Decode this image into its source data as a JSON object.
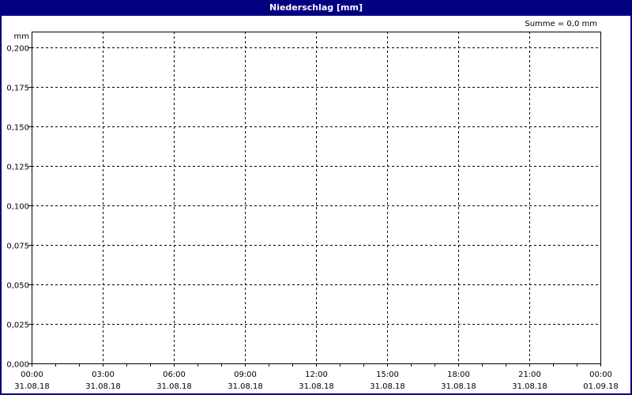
{
  "window": {
    "title": "Niederschlag [mm]"
  },
  "summary": "Summe = 0,0 mm",
  "colors": {
    "titlebar": "#000080",
    "grid": "#000000",
    "background": "#ffffff"
  },
  "chart_data": {
    "type": "bar",
    "title": "Niederschlag [mm]",
    "ylabel": "mm",
    "xlabel": "",
    "ylim": [
      0,
      0.21
    ],
    "yticks": [
      "0,000",
      "0,025",
      "0,050",
      "0,075",
      "0,100",
      "0,125",
      "0,150",
      "0,175",
      "0,200"
    ],
    "ytick_values": [
      0,
      0.025,
      0.05,
      0.075,
      0.1,
      0.125,
      0.15,
      0.175,
      0.2
    ],
    "xticks": [
      {
        "time": "00:00",
        "date": "31.08.18"
      },
      {
        "time": "03:00",
        "date": "31.08.18"
      },
      {
        "time": "06:00",
        "date": "31.08.18"
      },
      {
        "time": "09:00",
        "date": "31.08.18"
      },
      {
        "time": "12:00",
        "date": "31.08.18"
      },
      {
        "time": "15:00",
        "date": "31.08.18"
      },
      {
        "time": "18:00",
        "date": "31.08.18"
      },
      {
        "time": "21:00",
        "date": "31.08.18"
      },
      {
        "time": "00:00",
        "date": "01.09.18"
      }
    ],
    "xrange_hours": [
      0,
      24
    ],
    "grid": true,
    "values": [],
    "total": 0.0
  }
}
